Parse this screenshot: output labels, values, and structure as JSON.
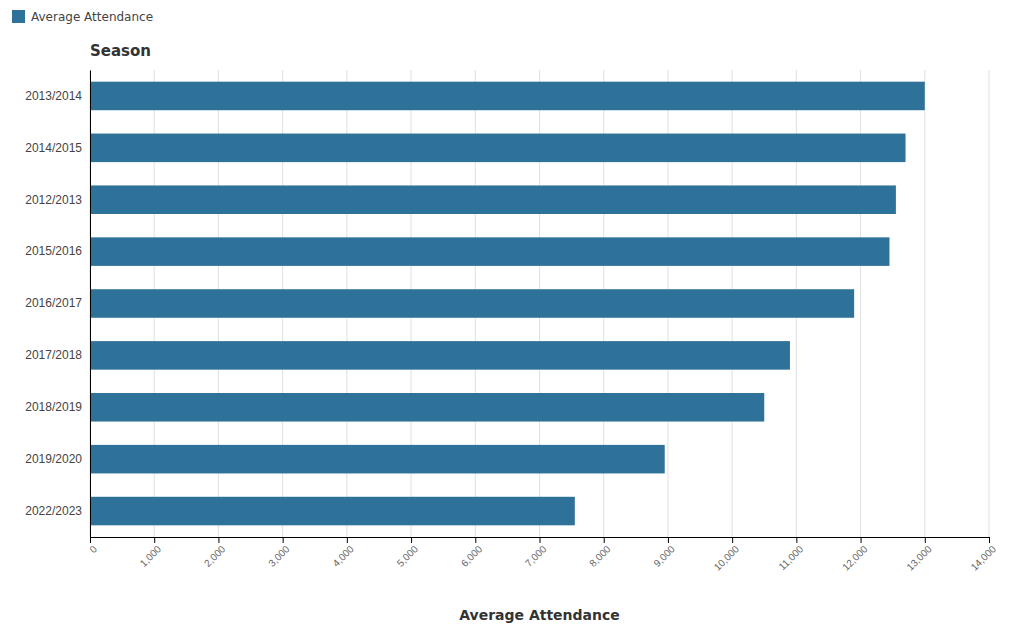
{
  "chart_data": {
    "type": "bar",
    "orientation": "horizontal",
    "title": "Season",
    "xlabel": "Average Attendance",
    "categories": [
      "2013/2014",
      "2014/2015",
      "2012/2013",
      "2015/2016",
      "2016/2017",
      "2017/2018",
      "2018/2019",
      "2019/2020",
      "2022/2023"
    ],
    "series": [
      {
        "name": "Average Attendance",
        "color": "#2e7199",
        "values": [
          13000,
          12700,
          12550,
          12450,
          11900,
          10900,
          10500,
          8950,
          7550
        ]
      }
    ],
    "xlim": [
      0,
      14000
    ],
    "xticks": [
      0,
      {
        "value": 1000,
        "label": "1,000"
      },
      {
        "value": 2000,
        "label": "2,000"
      },
      {
        "value": 3000,
        "label": "3,000"
      },
      {
        "value": 4000,
        "label": "4,000"
      },
      {
        "value": 5000,
        "label": "5,000"
      },
      {
        "value": 6000,
        "label": "6,000"
      },
      {
        "value": 7000,
        "label": "7,000"
      },
      {
        "value": 8000,
        "label": "8,000"
      },
      {
        "value": 9000,
        "label": "9,000"
      },
      {
        "value": 10000,
        "label": "10,000"
      },
      {
        "value": 11000,
        "label": "11,000"
      },
      {
        "value": 12000,
        "label": "12,000"
      },
      {
        "value": 13000,
        "label": "13,000"
      },
      {
        "value": 14000,
        "label": "14,000"
      }
    ],
    "grid": true,
    "legend": "top-left"
  }
}
